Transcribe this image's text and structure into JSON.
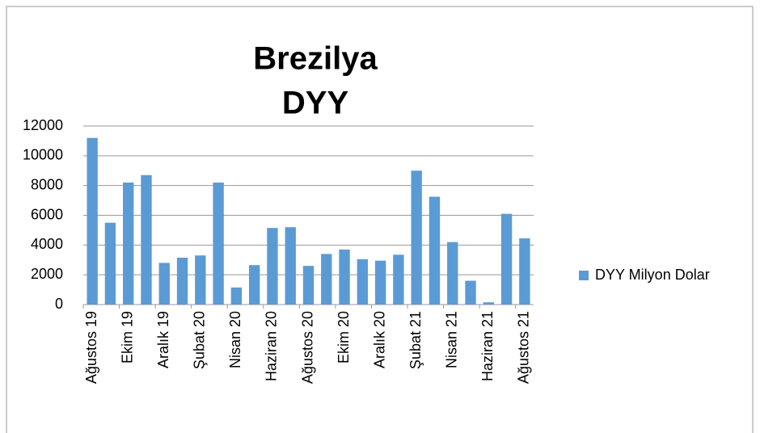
{
  "chart_data": {
    "type": "bar",
    "title_lines": [
      "Brezilya",
      "DYY"
    ],
    "categories": [
      "Ağustos 19",
      null,
      "Ekim 19",
      null,
      "Aralık 19",
      null,
      "Şubat 20",
      null,
      "Nisan 20",
      null,
      "Haziran 20",
      null,
      "Ağustos 20",
      null,
      "Ekim 20",
      null,
      "Aralık 20",
      null,
      "Şubat 21",
      null,
      "Nisan 21",
      null,
      "Haziran 21",
      null,
      "Ağustos 21"
    ],
    "series": [
      {
        "name": "DYY Milyon Dolar",
        "color": "#5b9bd5",
        "values": [
          11200,
          5500,
          8200,
          8700,
          2800,
          3150,
          3300,
          8200,
          1150,
          2650,
          5150,
          5200,
          2600,
          3400,
          3700,
          3050,
          2950,
          3350,
          9000,
          7250,
          4200,
          1600,
          150,
          6100,
          4450
        ]
      }
    ],
    "ylim": [
      0,
      12000
    ],
    "yticks": [
      0,
      2000,
      4000,
      6000,
      8000,
      10000,
      12000
    ],
    "grid": true,
    "legend": "right"
  }
}
